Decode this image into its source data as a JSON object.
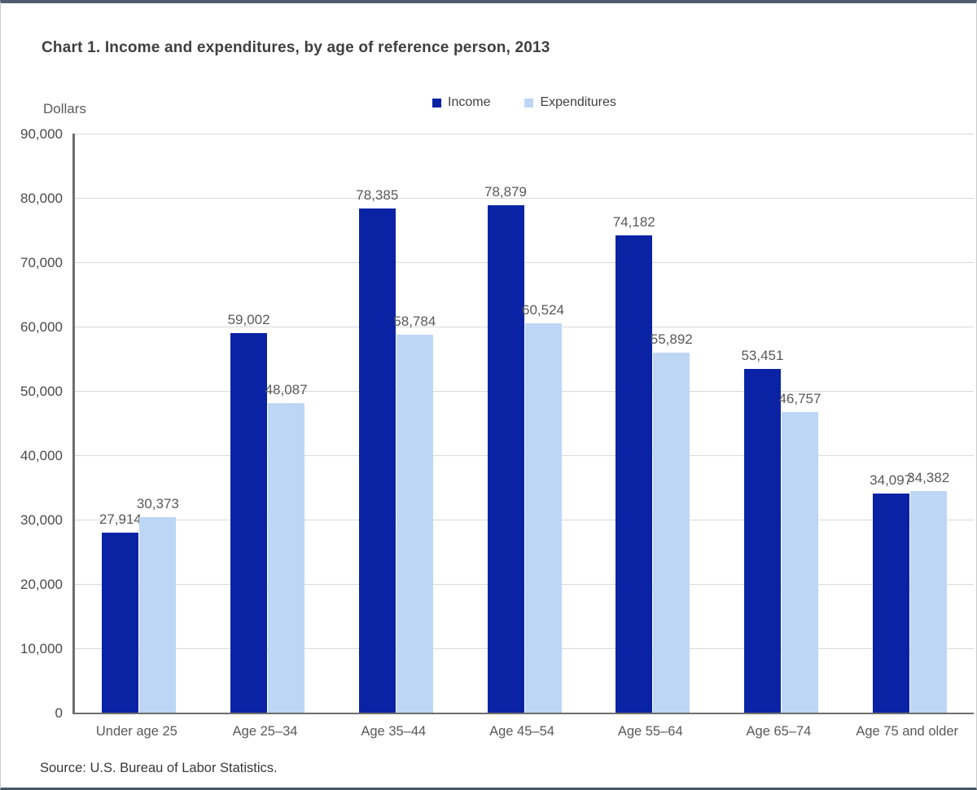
{
  "chart_data": {
    "type": "bar",
    "title": "Chart 1. Income and expenditures, by age of reference person, 2013",
    "ylabel": "Dollars",
    "xlabel": "",
    "categories": [
      "Under age 25",
      "Age 25–34",
      "Age 35–44",
      "Age 45–54",
      "Age 55–64",
      "Age 65–74",
      "Age 75 and older"
    ],
    "series": [
      {
        "name": "Income",
        "color": "#0a23a5",
        "values": [
          27914,
          59002,
          78385,
          78879,
          74182,
          53451,
          34097
        ],
        "labels": [
          "27,914",
          "59,002",
          "78,385",
          "78,879",
          "74,182",
          "53,451",
          "34,097"
        ]
      },
      {
        "name": "Expenditures",
        "color": "#bdd6f5",
        "values": [
          30373,
          48087,
          58784,
          60524,
          55892,
          46757,
          34382
        ],
        "labels": [
          "30,373",
          "48,087",
          "58,784",
          "60,524",
          "55,892",
          "46,757",
          "34,382"
        ]
      }
    ],
    "ylim": [
      0,
      90000
    ],
    "ytick_step": 10000,
    "y_tick_labels": [
      "0",
      "10,000",
      "20,000",
      "30,000",
      "40,000",
      "50,000",
      "60,000",
      "70,000",
      "80,000",
      "90,000"
    ],
    "grid": true,
    "legend_position": "top-center",
    "source": "Source: U.S. Bureau of Labor Statistics."
  },
  "colors": {
    "gridline": "#d9d9d9",
    "axis": "#6e6e6e",
    "title_text": "#3f3f3f",
    "tick_text": "#4a4a4a",
    "label_text": "#595959"
  }
}
